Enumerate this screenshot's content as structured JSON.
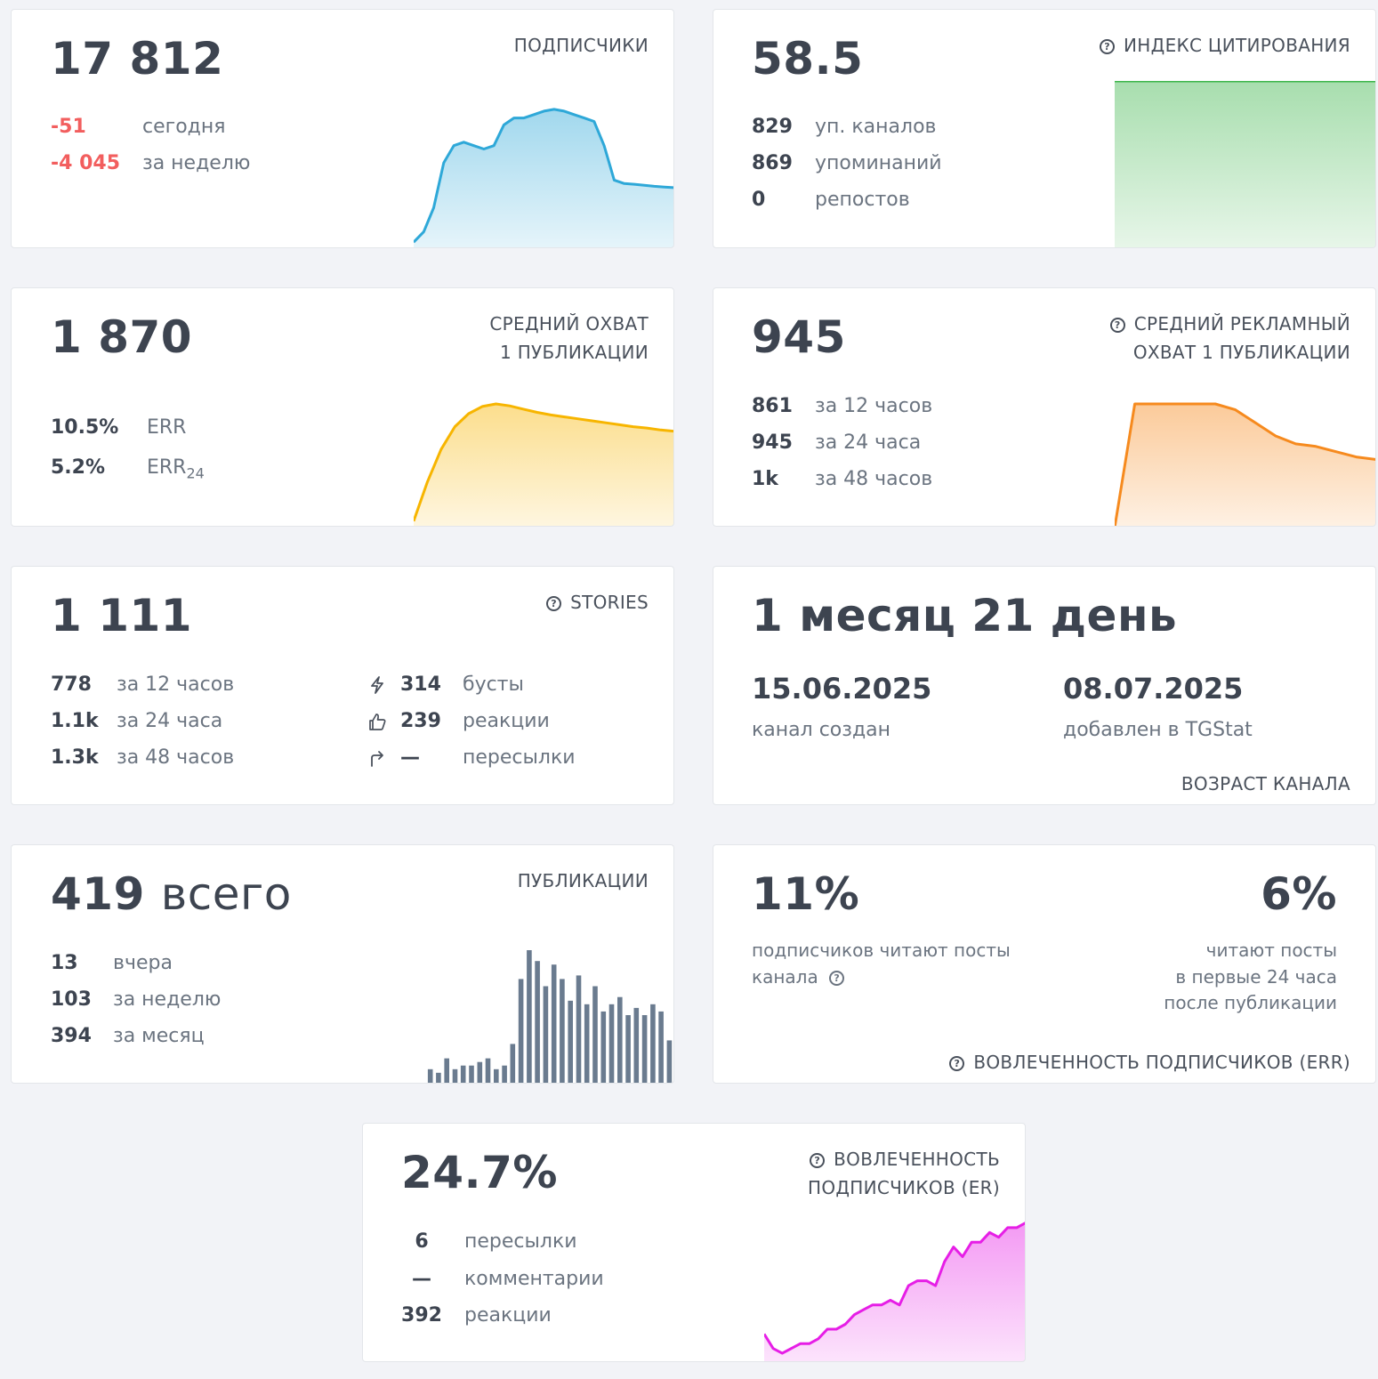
{
  "subscribers": {
    "value": "17 812",
    "title": "ПОДПИСЧИКИ",
    "rows": [
      {
        "value": "-51",
        "label": "сегодня"
      },
      {
        "value": "-4 045",
        "label": "за неделю"
      }
    ],
    "color": "#2ea8d8"
  },
  "citation": {
    "value": "58.5",
    "title": "ИНДЕКС ЦИТИРОВАНИЯ",
    "rows": [
      {
        "value": "829",
        "label": "уп. каналов"
      },
      {
        "value": "869",
        "label": "упоминаний"
      },
      {
        "value": "0",
        "label": "репостов"
      }
    ],
    "color": "#3cb54a"
  },
  "avg_reach": {
    "value": "1 870",
    "title_line1": "СРЕДНИЙ ОХВАТ",
    "title_line2": "1 ПУБЛИКАЦИИ",
    "rows": [
      {
        "value": "10.5%",
        "label": "ERR",
        "sub": ""
      },
      {
        "value": "5.2%",
        "label": "ERR",
        "sub": "24"
      }
    ],
    "color": "#f7b500"
  },
  "ad_reach": {
    "value": "945",
    "title_line1": "СРЕДНИЙ РЕКЛАМНЫЙ",
    "title_line2": "ОХВАТ 1 ПУБЛИКАЦИИ",
    "rows": [
      {
        "value": "861",
        "label": "за 12 часов"
      },
      {
        "value": "945",
        "label": "за 24 часа"
      },
      {
        "value": "1k",
        "label": "за 48 часов"
      }
    ],
    "color": "#f68a1e"
  },
  "stories": {
    "value": "1 111",
    "title": "STORIES",
    "rows": [
      {
        "value": "778",
        "label": "за 12 часов"
      },
      {
        "value": "1.1k",
        "label": "за 24 часа"
      },
      {
        "value": "1.3k",
        "label": "за 48 часов"
      }
    ],
    "right_rows": [
      {
        "icon": "lightning-icon",
        "value": "314",
        "label": "бусты"
      },
      {
        "icon": "thumbs-up-icon",
        "value": "239",
        "label": "реакции"
      },
      {
        "icon": "share-arrow-icon",
        "value": "—",
        "label": "пересылки"
      }
    ]
  },
  "age": {
    "value": "1 месяц 21 день",
    "created_date": "15.06.2025",
    "created_label": "канал создан",
    "added_date": "08.07.2025",
    "added_label": "добавлен в TGStat",
    "title": "ВОЗРАСТ КАНАЛА"
  },
  "posts": {
    "value_num": "419",
    "value_word": "всего",
    "title": "ПУБЛИКАЦИИ",
    "rows": [
      {
        "value": "13",
        "label": "вчера"
      },
      {
        "value": "103",
        "label": "за неделю"
      },
      {
        "value": "394",
        "label": "за месяц"
      }
    ],
    "color": "#6a7b8f"
  },
  "err": {
    "left_value": "11%",
    "left_line1": "подписчиков читают посты",
    "left_line2": "канала",
    "right_value": "6%",
    "right_line1": "читают посты",
    "right_line2": "в первые 24 часа",
    "right_line3": "после публикации",
    "title": "ВОВЛЕЧЕННОСТЬ ПОДПИСЧИКОВ (ERR)"
  },
  "er": {
    "value": "24.7%",
    "title_line1": "ВОВЛЕЧЕННОСТЬ",
    "title_line2": "ПОДПИСЧИКОВ (ER)",
    "rows": [
      {
        "value": "6",
        "label": "пересылки"
      },
      {
        "value": "—",
        "label": "комментарии"
      },
      {
        "value": "392",
        "label": "реакции"
      }
    ],
    "color": "#e61ee6"
  },
  "help_glyph": "?",
  "chart_data": [
    {
      "type": "area",
      "name_ref": "subscribers",
      "values": [
        18420,
        18450,
        18520,
        18650,
        18700,
        18710,
        18700,
        18690,
        18700,
        18760,
        18780,
        18780,
        18790,
        18800,
        18805,
        18800,
        18790,
        18780,
        18770,
        18700,
        18600,
        18590,
        18588,
        18585,
        18582,
        18580,
        18578
      ]
    },
    {
      "type": "area",
      "name_ref": "citation",
      "values": [
        58.5,
        58.5,
        58.5,
        58.5,
        58.5,
        58.5,
        58.5,
        58.5,
        58.5,
        58.5
      ]
    },
    {
      "type": "area",
      "name_ref": "avg_reach",
      "values": [
        100,
        700,
        1200,
        1550,
        1750,
        1860,
        1900,
        1870,
        1820,
        1770,
        1730,
        1700,
        1670,
        1640,
        1610,
        1580,
        1550,
        1530,
        1500,
        1480
      ]
    },
    {
      "type": "area",
      "name_ref": "ad_reach",
      "values": [
        0,
        945,
        945,
        945,
        945,
        945,
        900,
        800,
        700,
        640,
        620,
        580,
        540,
        520
      ]
    },
    {
      "type": "bar",
      "name_ref": "posts",
      "values": [
        4,
        3,
        7,
        4,
        5,
        5,
        6,
        7,
        4,
        5,
        11,
        29,
        37,
        34,
        27,
        33,
        29,
        23,
        30,
        22,
        27,
        20,
        22,
        24,
        19,
        21,
        19,
        22,
        20,
        12
      ]
    },
    {
      "type": "area",
      "name_ref": "er",
      "values": [
        6,
        3,
        2,
        3,
        4,
        4,
        5,
        7,
        7,
        8,
        10,
        11,
        12,
        12,
        13,
        12,
        16,
        17,
        17,
        16,
        21,
        24,
        22,
        25,
        25,
        27,
        26,
        28,
        28,
        29
      ]
    }
  ]
}
